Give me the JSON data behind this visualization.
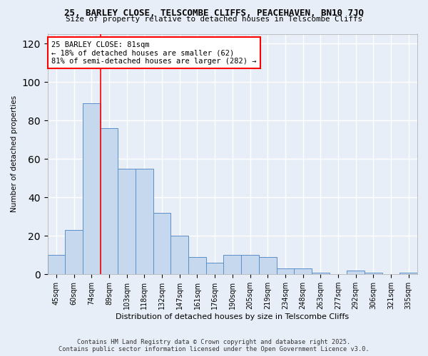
{
  "title": "25, BARLEY CLOSE, TELSCOMBE CLIFFS, PEACEHAVEN, BN10 7JQ",
  "subtitle": "Size of property relative to detached houses in Telscombe Cliffs",
  "xlabel": "Distribution of detached houses by size in Telscombe Cliffs",
  "ylabel": "Number of detached properties",
  "categories": [
    "45sqm",
    "60sqm",
    "74sqm",
    "89sqm",
    "103sqm",
    "118sqm",
    "132sqm",
    "147sqm",
    "161sqm",
    "176sqm",
    "190sqm",
    "205sqm",
    "219sqm",
    "234sqm",
    "248sqm",
    "263sqm",
    "277sqm",
    "292sqm",
    "306sqm",
    "321sqm",
    "335sqm"
  ],
  "values": [
    10,
    23,
    89,
    76,
    55,
    55,
    32,
    20,
    9,
    6,
    10,
    10,
    9,
    3,
    3,
    1,
    0,
    2,
    1,
    0,
    1
  ],
  "bar_color": "#c5d8ee",
  "bar_edge_color": "#5b8fc9",
  "background_color": "#e8eef7",
  "grid_color": "#ffffff",
  "vline_x": 2.5,
  "vline_color": "red",
  "annotation_text": "25 BARLEY CLOSE: 81sqm\n← 18% of detached houses are smaller (62)\n81% of semi-detached houses are larger (282) →",
  "annotation_box_color": "white",
  "annotation_box_edge": "red",
  "ylim": [
    0,
    125
  ],
  "yticks": [
    0,
    20,
    40,
    60,
    80,
    100,
    120
  ],
  "footer1": "Contains HM Land Registry data © Crown copyright and database right 2025.",
  "footer2": "Contains public sector information licensed under the Open Government Licence v3.0."
}
